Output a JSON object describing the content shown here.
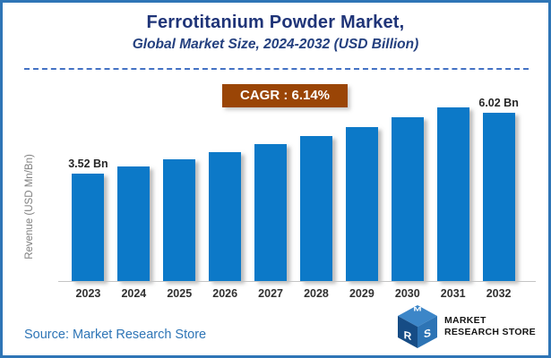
{
  "frame": {
    "border_color": "#2E75B6",
    "background": "#FFFFFF"
  },
  "header": {
    "title": "Ferrotitanium Powder Market,",
    "subtitle": "Global Market Size, 2024-2032 (USD Billion)",
    "title_color": "#1F3478",
    "divider_color": "#4472C4"
  },
  "cagr_badge": {
    "label": "CAGR : 6.14%",
    "bg_color": "#9A4506",
    "text_color": "#FFFFFF"
  },
  "chart_data": {
    "type": "bar",
    "title": "Ferrotitanium Powder Market,",
    "subtitle": "Global Market Size, 2024-2032 (USD Billion)",
    "categories": [
      "2023",
      "2024",
      "2025",
      "2026",
      "2027",
      "2028",
      "2029",
      "2030",
      "2031",
      "2032"
    ],
    "values": [
      3.52,
      3.74,
      3.97,
      4.21,
      4.47,
      4.74,
      5.03,
      5.34,
      5.67,
      6.02
    ],
    "value_unit": "USD Bn",
    "data_labels": {
      "first": "3.52 Bn",
      "last": "6.02 Bn"
    },
    "xlabel": "",
    "ylabel": "Revenue (USD Mn/Bn)",
    "ylim": [
      0,
      6.4
    ],
    "grid": false,
    "legend": "none",
    "bar_color": "#0C79C8",
    "axis_line_color": "#C4C4C4",
    "tick_label_color": "#303030",
    "ylabel_color": "#7F7F7F"
  },
  "footer": {
    "source": "Source: Market Research Store",
    "source_color": "#2E75B6",
    "logo": {
      "line1": "MARKET",
      "line2": "RESEARCH STORE",
      "cube_top_color": "#3C86C8",
      "cube_left_color": "#164C85",
      "cube_right_color": "#2D74B5"
    }
  }
}
